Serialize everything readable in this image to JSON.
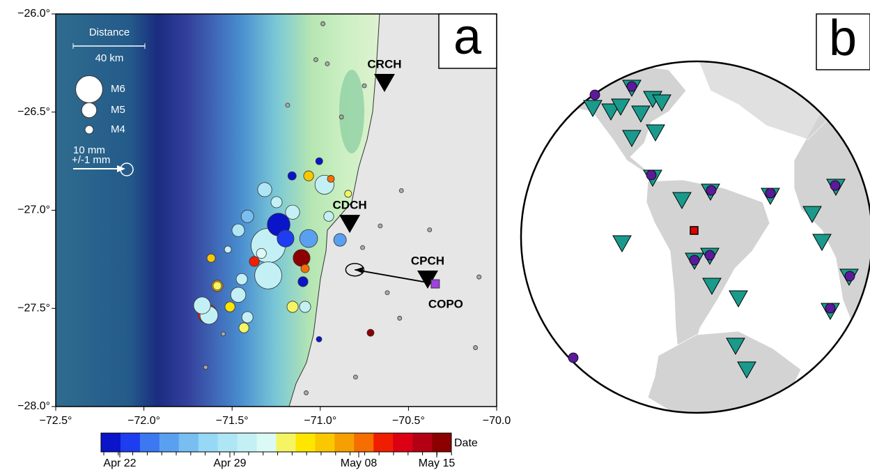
{
  "map": {
    "panel_label": "a",
    "xlim": [
      -72.5,
      -70.0
    ],
    "ylim": [
      -28.0,
      -26.0
    ],
    "xticks": [
      {
        "value": -72.5,
        "label": "−72.5°"
      },
      {
        "value": -72.0,
        "label": "−72.0°"
      },
      {
        "value": -71.5,
        "label": "−71.5°"
      },
      {
        "value": -71.0,
        "label": "−71.0°"
      },
      {
        "value": -70.5,
        "label": "−70.5°"
      },
      {
        "value": -70.0,
        "label": "−70.0"
      }
    ],
    "yticks": [
      {
        "value": -26.0,
        "label": "−26.0°"
      },
      {
        "value": -26.5,
        "label": "−26.5°"
      },
      {
        "value": -27.0,
        "label": "−27.0°"
      },
      {
        "value": -27.5,
        "label": "−27.5°"
      },
      {
        "value": -28.0,
        "label": "−28.0°"
      }
    ],
    "stations": [
      {
        "name": "CRCH",
        "lon": -70.636,
        "lat": -26.348
      },
      {
        "name": "CDCH",
        "lon": -70.833,
        "lat": -27.066
      },
      {
        "name": "CPCH",
        "lon": -70.391,
        "lat": -27.35
      }
    ],
    "gps_site": {
      "name": "COPO",
      "lon": -70.348,
      "lat": -27.375,
      "color": "#a040e0"
    },
    "gps_vector_mm": {
      "east": -15.4,
      "north": 2.7
    },
    "legend": {
      "distance_title": "Distance",
      "distance_label": "40 km",
      "magnitudes": [
        {
          "label": "M6",
          "mag": 6
        },
        {
          "label": "M5",
          "mag": 5
        },
        {
          "label": "M4",
          "mag": 4
        }
      ],
      "vector_label": "10 mm",
      "error_label": "+/-1 mm"
    },
    "events": [
      {
        "lon": -71.295,
        "lat": -27.18,
        "mag": 6.4,
        "color": "#c3f0f5"
      },
      {
        "lon": -71.295,
        "lat": -27.332,
        "mag": 6.0,
        "color": "#c3f0f5"
      },
      {
        "lon": -70.976,
        "lat": -26.87,
        "mag": 5.4,
        "color": "#c3f0f5"
      },
      {
        "lon": -71.315,
        "lat": -26.895,
        "mag": 4.9,
        "color": "#aee6f5"
      },
      {
        "lon": -71.157,
        "lat": -27.01,
        "mag": 4.9,
        "color": "#c3f0f5"
      },
      {
        "lon": -71.248,
        "lat": -26.959,
        "mag": 4.5,
        "color": "#c3f0f5"
      },
      {
        "lon": -71.465,
        "lat": -27.102,
        "mag": 4.7,
        "color": "#aee6f5"
      },
      {
        "lon": -71.413,
        "lat": -27.031,
        "mag": 4.7,
        "color": "#78bef0"
      },
      {
        "lon": -71.445,
        "lat": -27.351,
        "mag": 4.5,
        "color": "#c3f0f5"
      },
      {
        "lon": -70.952,
        "lat": -27.031,
        "mag": 4.3,
        "color": "#c3f0f5"
      },
      {
        "lon": -71.066,
        "lat": -27.144,
        "mag": 5.3,
        "color": "#5aa0f0"
      },
      {
        "lon": -71.197,
        "lat": -27.144,
        "mag": 5.2,
        "color": "#1e3cf0"
      },
      {
        "lon": -71.236,
        "lat": -27.073,
        "mag": 5.7,
        "color": "#0a14c8"
      },
      {
        "lon": -71.106,
        "lat": -27.243,
        "mag": 5.2,
        "color": "#8c0000"
      },
      {
        "lon": -71.639,
        "lat": -27.528,
        "mag": 5.4,
        "color": "#f01e00"
      },
      {
        "lon": -71.67,
        "lat": -27.485,
        "mag": 5.2,
        "color": "#c3f0f5"
      },
      {
        "lon": -71.631,
        "lat": -27.535,
        "mag": 5.3,
        "color": "#c3f0f5"
      },
      {
        "lon": -71.465,
        "lat": -27.431,
        "mag": 5.0,
        "color": "#c3f0f5"
      },
      {
        "lon": -71.413,
        "lat": -27.545,
        "mag": 4.5,
        "color": "#c3f0f5"
      },
      {
        "lon": -71.098,
        "lat": -27.364,
        "mag": 4.3,
        "color": "#0a14c8"
      },
      {
        "lon": -70.888,
        "lat": -27.151,
        "mag": 4.7,
        "color": "#5aa0f0"
      },
      {
        "lon": -71.157,
        "lat": -27.492,
        "mag": 4.5,
        "color": "#f5f564"
      },
      {
        "lon": -71.086,
        "lat": -27.492,
        "mag": 4.5,
        "color": "#c3f0f5"
      },
      {
        "lon": -71.584,
        "lat": -27.385,
        "mag": 4.5,
        "color": "#f5a000"
      },
      {
        "lon": -71.584,
        "lat": -27.385,
        "mag": 4.0,
        "color": "#f5f564"
      },
      {
        "lon": -71.512,
        "lat": -27.492,
        "mag": 4.3,
        "color": "#ffe600"
      },
      {
        "lon": -71.433,
        "lat": -27.599,
        "mag": 4.3,
        "color": "#f5f564"
      },
      {
        "lon": -71.619,
        "lat": -27.244,
        "mag": 4.0,
        "color": "#fac800"
      },
      {
        "lon": -71.066,
        "lat": -26.825,
        "mag": 4.3,
        "color": "#fac800"
      },
      {
        "lon": -70.94,
        "lat": -26.84,
        "mag": 3.7,
        "color": "#f56e00"
      },
      {
        "lon": -71.16,
        "lat": -26.825,
        "mag": 4.0,
        "color": "#0a14c8"
      },
      {
        "lon": -71.006,
        "lat": -26.75,
        "mag": 3.7,
        "color": "#0a14c8"
      },
      {
        "lon": -70.842,
        "lat": -26.916,
        "mag": 3.7,
        "color": "#f5f564"
      },
      {
        "lon": -71.086,
        "lat": -27.297,
        "mag": 4.0,
        "color": "#f56e00"
      },
      {
        "lon": -71.374,
        "lat": -27.261,
        "mag": 4.3,
        "color": "#f01e00"
      },
      {
        "lon": -70.715,
        "lat": -27.624,
        "mag": 3.7,
        "color": "#8c0000"
      },
      {
        "lon": -71.007,
        "lat": -27.657,
        "mag": 3.3,
        "color": "#0a14c8"
      },
      {
        "lon": -71.334,
        "lat": -27.22,
        "mag": 4.3,
        "color": "#dcfaf5"
      },
      {
        "lon": -71.524,
        "lat": -27.2,
        "mag": 3.7,
        "color": "#c3f0f5"
      }
    ],
    "background_events": [
      {
        "lon": -70.985,
        "lat": -26.05
      },
      {
        "lon": -71.025,
        "lat": -26.233
      },
      {
        "lon": -70.96,
        "lat": -26.254
      },
      {
        "lon": -70.75,
        "lat": -26.366
      },
      {
        "lon": -70.88,
        "lat": -26.525
      },
      {
        "lon": -71.185,
        "lat": -26.465
      },
      {
        "lon": -70.54,
        "lat": -26.9
      },
      {
        "lon": -70.66,
        "lat": -27.08
      },
      {
        "lon": -70.76,
        "lat": -27.19
      },
      {
        "lon": -70.38,
        "lat": -27.1
      },
      {
        "lon": -70.1,
        "lat": -27.34
      },
      {
        "lon": -70.62,
        "lat": -27.42
      },
      {
        "lon": -70.8,
        "lat": -27.85
      },
      {
        "lon": -71.08,
        "lat": -27.93
      },
      {
        "lon": -71.65,
        "lat": -27.8
      },
      {
        "lon": -70.12,
        "lat": -27.7
      },
      {
        "lon": -70.55,
        "lat": -27.55
      },
      {
        "lon": -71.55,
        "lat": -27.63
      }
    ],
    "colorbar": {
      "label": "Date",
      "colors": [
        "#0a14c8",
        "#1e3cf0",
        "#3c78f0",
        "#5aa0f0",
        "#78bef0",
        "#96d8f5",
        "#aee6f5",
        "#c3f0f5",
        "#dcfaf5",
        "#f5f564",
        "#ffe600",
        "#fac800",
        "#f5a000",
        "#f56e00",
        "#f01e00",
        "#dc0014",
        "#b40014",
        "#8c0000"
      ],
      "ticks": [
        "Apr 22",
        "Apr 29",
        "May 08",
        "May 15"
      ]
    }
  },
  "globe": {
    "panel_label": "b"
  }
}
